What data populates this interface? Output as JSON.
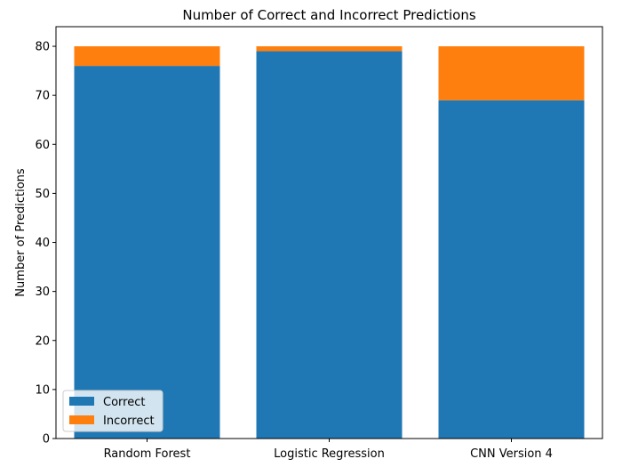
{
  "chart_data": {
    "type": "bar",
    "stacked": true,
    "title": "Number of Correct and Incorrect Predictions",
    "xlabel": "",
    "ylabel": "Number of Predictions",
    "categories": [
      "Random Forest",
      "Logistic Regression",
      "CNN Version 4"
    ],
    "series": [
      {
        "name": "Correct",
        "color": "#1f77b4",
        "values": [
          76,
          79,
          69
        ]
      },
      {
        "name": "Incorrect",
        "color": "#ff7f0e",
        "values": [
          4,
          1,
          11
        ]
      }
    ],
    "ylim": [
      0,
      84
    ],
    "yticks": [
      0,
      10,
      20,
      30,
      40,
      50,
      60,
      70,
      80
    ],
    "grid": false,
    "legend_position": "lower-left"
  }
}
